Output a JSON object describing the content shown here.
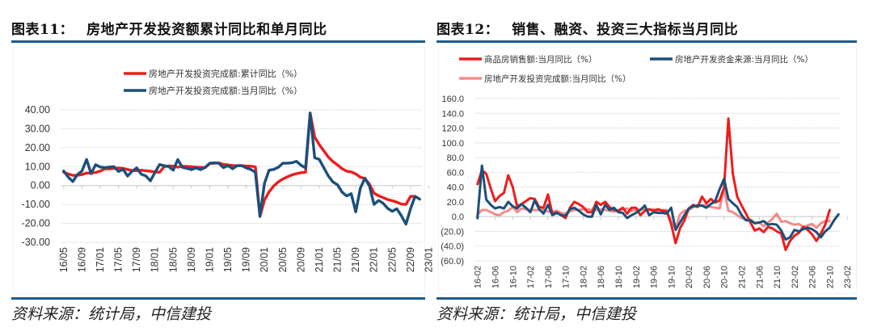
{
  "charts": {
    "left": {
      "title_prefix": "图表",
      "title_num": "11：",
      "title_text": "房地产开发投资额累计同比和单月同比",
      "source": "资料来源：统计局，中信建投"
    },
    "right": {
      "title_prefix": "图表",
      "title_num": "12：",
      "title_text": "销售、融资、投资三大指标当月同比",
      "source": "资料来源：统计局，中信建投"
    }
  },
  "colors": {
    "red": "#ee1c1c",
    "navy": "#1b4f7a",
    "pink": "#f58a8a",
    "negative_label": "#e02020",
    "rule": "#1f5a8a"
  },
  "chart_data": [
    {
      "type": "line",
      "title": "房地产开发投资额累计同比和单月同比",
      "xlabel": "",
      "ylabel": "",
      "ylim": [
        -30,
        40
      ],
      "yticks": [
        "40.00",
        "30.00",
        "20.00",
        "10.00",
        "0.00",
        "-10.00",
        "-20.00",
        "-30.00"
      ],
      "ytick_values": [
        40,
        30,
        20,
        10,
        0,
        -10,
        -20,
        -30
      ],
      "grid": true,
      "legend": "top-center",
      "x_start": "2016-05",
      "x_tick_labels": [
        "16/05",
        "16/09",
        "17/01",
        "17/05",
        "17/09",
        "18/01",
        "18/05",
        "18/09",
        "19/01",
        "19/05",
        "19/09",
        "20/01",
        "20/05",
        "20/09",
        "21/01",
        "21/05",
        "21/09",
        "22/01",
        "22/05",
        "22/09",
        "23/01"
      ],
      "series": [
        {
          "name": "房地产开发投资完成额:累计同比（%）",
          "color": "red",
          "values": [
            7.0,
            6.1,
            5.4,
            5.4,
            5.8,
            6.6,
            6.6,
            6.9,
            7.6,
            8.9,
            8.8,
            9.1,
            9.3,
            9.0,
            8.5,
            7.9,
            7.8,
            8.1,
            7.8,
            7.5,
            7.2,
            7.0,
            9.9,
            10.4,
            10.2,
            9.7,
            10.2,
            10.1,
            9.9,
            9.7,
            9.6,
            9.5,
            11.6,
            11.8,
            11.9,
            11.2,
            10.9,
            10.6,
            10.5,
            10.5,
            10.3,
            10.2,
            9.9,
            -16.3,
            -7.7,
            -3.3,
            -0.3,
            1.9,
            3.4,
            4.6,
            5.6,
            6.3,
            6.8,
            7.0,
            38.3,
            25.6,
            21.6,
            18.3,
            15.0,
            12.7,
            10.9,
            8.9,
            7.6,
            7.2,
            6.1,
            4.4,
            3.7,
            0.7,
            -4.0,
            -5.4,
            -6.4,
            -7.4,
            -8.0,
            -8.8,
            -9.8,
            -10.0,
            -5.7,
            -5.8
          ],
          "note": "monthly, approx."
        },
        {
          "name": "房地产开发投资完成额:当月同比（%）",
          "color": "navy",
          "values": [
            7.7,
            4.4,
            2.1,
            5.8,
            7.7,
            13.8,
            6.3,
            11.0,
            9.8,
            9.5,
            9.8,
            10.0,
            7.4,
            8.6,
            5.0,
            7.6,
            9.3,
            6.0,
            5.1,
            2.5,
            6.9,
            11.1,
            10.5,
            10.0,
            8.1,
            13.7,
            9.6,
            9.1,
            8.4,
            9.3,
            8.4,
            9.6,
            11.8,
            12.0,
            11.8,
            9.5,
            10.5,
            8.9,
            10.5,
            10.5,
            9.3,
            8.5,
            7.0,
            -16.3,
            1.2,
            8.1,
            8.5,
            9.6,
            11.8,
            11.8,
            12.0,
            12.8,
            10.7,
            9.3,
            38.3,
            14.7,
            13.8,
            9.4,
            5.0,
            1.9,
            0.4,
            -3.5,
            -5.5,
            -4.3,
            -13.9,
            -1.4,
            3.9,
            -0.3,
            -10.0,
            -7.9,
            -9.4,
            -12.1,
            -13.6,
            -12.3,
            -16.0,
            -20.4,
            -12.2,
            -5.7,
            -7.2
          ],
          "note": "monthly, approx."
        }
      ]
    },
    {
      "type": "line",
      "title": "销售、融资、投资三大指标当月同比",
      "xlabel": "",
      "ylabel": "",
      "ylim": [
        -60,
        160
      ],
      "yticks": [
        "160.0",
        "140.0",
        "120.0",
        "100.0",
        "80.0",
        "60.0",
        "40.0",
        "20.0",
        "0.0",
        "(20.0)",
        "(40.0)",
        "(60.0)"
      ],
      "ytick_values": [
        160,
        140,
        120,
        100,
        80,
        60,
        40,
        20,
        0,
        -20,
        -40,
        -60
      ],
      "grid": true,
      "legend": "top",
      "x_start": "2016-02",
      "x_tick_labels": [
        "16-02",
        "16-06",
        "16-10",
        "17-02",
        "17-06",
        "17-10",
        "18-02",
        "18-06",
        "18-10",
        "19-02",
        "19-06",
        "19-10",
        "20-02",
        "20-06",
        "20-10",
        "21-02",
        "21-06",
        "21-10",
        "22-02",
        "22-06",
        "22-10",
        "23-02"
      ],
      "series": [
        {
          "name": "商品房销售额:当月同比（%）",
          "color": "red",
          "values": [
            44,
            63,
            58,
            38,
            21,
            28,
            32,
            56,
            40,
            14,
            17,
            21,
            25,
            24,
            13,
            12,
            30,
            4,
            6,
            2,
            -2,
            12,
            20,
            17,
            13,
            6,
            6,
            20,
            16,
            20,
            13,
            9,
            8,
            12,
            4,
            12,
            12,
            2,
            8,
            10,
            8,
            10,
            8,
            7,
            -10,
            -36,
            -16,
            -5,
            11,
            16,
            13,
            27,
            18,
            24,
            19,
            22,
            39,
            133,
            58,
            27,
            15,
            4,
            -8,
            -19,
            -16,
            -21,
            -14,
            -16,
            -20,
            -23,
            -45,
            -33,
            -26,
            -22,
            -14,
            -18,
            -24,
            -33,
            -23,
            -11,
            9
          ],
          "note": "monthly, approx."
        },
        {
          "name": "房地产开发资金来源:当月同比（%）",
          "color": "navy",
          "values": [
            -2,
            69,
            23,
            16,
            11,
            13,
            11,
            20,
            14,
            11,
            17,
            12,
            6,
            22,
            10,
            4,
            16,
            2,
            5,
            2,
            1,
            10,
            12,
            8,
            3,
            0,
            0,
            16,
            3,
            16,
            9,
            12,
            6,
            5,
            -2,
            2,
            5,
            9,
            15,
            2,
            6,
            5,
            5,
            4,
            12,
            -18,
            -8,
            2,
            11,
            14,
            15,
            15,
            12,
            17,
            21,
            37,
            51,
            24,
            18,
            13,
            2,
            -5,
            -5,
            -9,
            -8,
            -6,
            -11,
            -10,
            -11,
            -19,
            -31,
            -28,
            -18,
            -20,
            -17,
            -15,
            -17,
            -21,
            -28,
            -20,
            -15,
            -5,
            3
          ],
          "note": "monthly, approx."
        },
        {
          "name": "房地产开发投资完成额:当月同比（%）",
          "color": "pink",
          "values": [
            3,
            9,
            9,
            6,
            3,
            2,
            6,
            8,
            13,
            6,
            11,
            10,
            9,
            9,
            9,
            9,
            7,
            6,
            8,
            5,
            4,
            7,
            9,
            9,
            10,
            10,
            9,
            9,
            10,
            9,
            8,
            7,
            8,
            10,
            11,
            8,
            9,
            10,
            10,
            9,
            10,
            8,
            9,
            9,
            -7,
            -16,
            3,
            8,
            9,
            13,
            14,
            15,
            16,
            13,
            12,
            11,
            38,
            8,
            6,
            2,
            -2,
            -4,
            -4,
            -9,
            -8,
            -13,
            -8,
            -3,
            4,
            -7,
            -6,
            -9,
            -11,
            -10,
            -14,
            -12,
            -10,
            -15,
            -9,
            -6,
            -6
          ],
          "note": "monthly, approx."
        }
      ]
    }
  ]
}
